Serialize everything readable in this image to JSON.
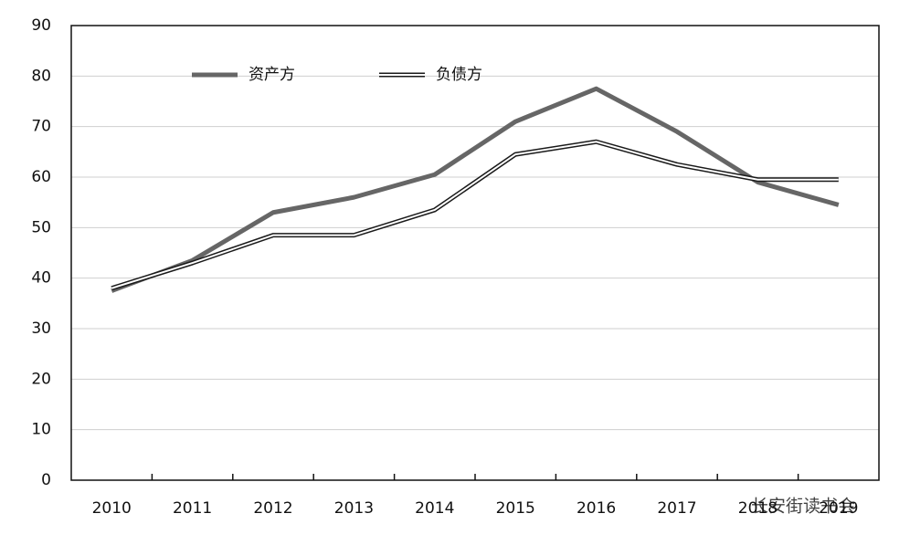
{
  "chart_data": {
    "type": "line",
    "categories": [
      "2010",
      "2011",
      "2012",
      "2013",
      "2014",
      "2015",
      "2016",
      "2017",
      "2018",
      "2019"
    ],
    "series": [
      {
        "name": "资产方",
        "color": "#666666",
        "values": [
          37.5,
          43.5,
          53,
          56,
          60.5,
          71,
          77.5,
          69,
          59,
          54.5
        ]
      },
      {
        "name": "负债方",
        "color": "#1a1a1a",
        "values": [
          38,
          43,
          48.5,
          48.5,
          53.5,
          64.5,
          67,
          62.5,
          59.5,
          59.5
        ]
      }
    ],
    "ylim": [
      0,
      90
    ],
    "yticks": [
      0,
      10,
      20,
      30,
      40,
      50,
      60,
      70,
      80,
      90
    ],
    "grid": true,
    "watermark": "长安街读书会"
  }
}
